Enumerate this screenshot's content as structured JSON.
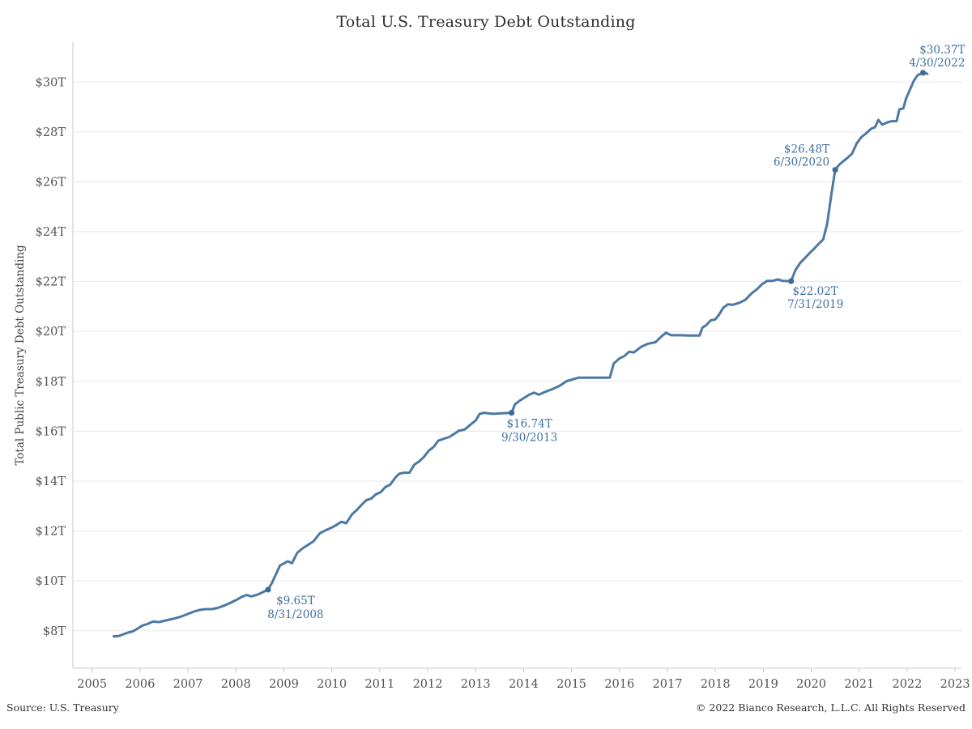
{
  "header": {
    "title": "Total U.S. Treasury Debt Outstanding"
  },
  "footer": {
    "source": "Source: U.S. Treasury",
    "copyright": "© 2022 Bianco Research, L.L.C. All Rights Reserved"
  },
  "chart_data": {
    "type": "line",
    "title": "Total U.S. Treasury Debt Outstanding",
    "xlabel": "",
    "ylabel": "Total Public Treasury Debt Outstanding",
    "legend_position": "none",
    "grid": "horizontal",
    "xlim": [
      2004.6,
      2023.15
    ],
    "ylim": [
      6.5,
      31.6
    ],
    "colors": {
      "line": "#4b79a5",
      "marker": "#3d6c9b",
      "annotation": "#3f6f9f",
      "grid": "#e7e7e7",
      "axis": "#c9c9c9",
      "tick_text": "#525252",
      "ylabel_text": "#444444"
    },
    "y_ticks": [
      {
        "value": 8,
        "label": "$8T"
      },
      {
        "value": 10,
        "label": "$10T"
      },
      {
        "value": 12,
        "label": "$12T"
      },
      {
        "value": 14,
        "label": "$14T"
      },
      {
        "value": 16,
        "label": "$16T"
      },
      {
        "value": 18,
        "label": "$18T"
      },
      {
        "value": 20,
        "label": "$20T"
      },
      {
        "value": 22,
        "label": "$22T"
      },
      {
        "value": 24,
        "label": "$24T"
      },
      {
        "value": 26,
        "label": "$26T"
      },
      {
        "value": 28,
        "label": "$28T"
      },
      {
        "value": 30,
        "label": "$30T"
      }
    ],
    "x_ticks": [
      {
        "value": 2005,
        "label": "2005"
      },
      {
        "value": 2006,
        "label": "2006"
      },
      {
        "value": 2007,
        "label": "2007"
      },
      {
        "value": 2008,
        "label": "2008"
      },
      {
        "value": 2009,
        "label": "2009"
      },
      {
        "value": 2010,
        "label": "2010"
      },
      {
        "value": 2011,
        "label": "2011"
      },
      {
        "value": 2012,
        "label": "2012"
      },
      {
        "value": 2013,
        "label": "2013"
      },
      {
        "value": 2014,
        "label": "2014"
      },
      {
        "value": 2015,
        "label": "2015"
      },
      {
        "value": 2016,
        "label": "2016"
      },
      {
        "value": 2017,
        "label": "2017"
      },
      {
        "value": 2018,
        "label": "2018"
      },
      {
        "value": 2019,
        "label": "2019"
      },
      {
        "value": 2020,
        "label": "2020"
      },
      {
        "value": 2021,
        "label": "2021"
      },
      {
        "value": 2022,
        "label": "2022"
      },
      {
        "value": 2023,
        "label": "2023"
      }
    ],
    "series": [
      {
        "name": "Total Public Treasury Debt Outstanding",
        "color": "#4b79a5",
        "points": [
          [
            2005.45,
            7.78
          ],
          [
            2005.55,
            7.79
          ],
          [
            2005.65,
            7.86
          ],
          [
            2005.75,
            7.93
          ],
          [
            2005.85,
            7.98
          ],
          [
            2005.95,
            8.09
          ],
          [
            2006.05,
            8.21
          ],
          [
            2006.15,
            8.27
          ],
          [
            2006.27,
            8.37
          ],
          [
            2006.4,
            8.35
          ],
          [
            2006.5,
            8.4
          ],
          [
            2006.62,
            8.45
          ],
          [
            2006.75,
            8.51
          ],
          [
            2006.87,
            8.58
          ],
          [
            2007.0,
            8.68
          ],
          [
            2007.12,
            8.77
          ],
          [
            2007.25,
            8.84
          ],
          [
            2007.37,
            8.87
          ],
          [
            2007.5,
            8.87
          ],
          [
            2007.62,
            8.92
          ],
          [
            2007.75,
            9.01
          ],
          [
            2007.87,
            9.11
          ],
          [
            2008.0,
            9.23
          ],
          [
            2008.12,
            9.36
          ],
          [
            2008.22,
            9.44
          ],
          [
            2008.32,
            9.38
          ],
          [
            2008.45,
            9.45
          ],
          [
            2008.55,
            9.54
          ],
          [
            2008.67,
            9.65
          ],
          [
            2008.75,
            9.91
          ],
          [
            2008.83,
            10.25
          ],
          [
            2008.92,
            10.62
          ],
          [
            2009.0,
            10.7
          ],
          [
            2009.08,
            10.79
          ],
          [
            2009.17,
            10.71
          ],
          [
            2009.28,
            11.13
          ],
          [
            2009.4,
            11.32
          ],
          [
            2009.5,
            11.44
          ],
          [
            2009.62,
            11.59
          ],
          [
            2009.75,
            11.91
          ],
          [
            2009.87,
            12.03
          ],
          [
            2010.0,
            12.14
          ],
          [
            2010.1,
            12.25
          ],
          [
            2010.2,
            12.37
          ],
          [
            2010.3,
            12.31
          ],
          [
            2010.42,
            12.67
          ],
          [
            2010.52,
            12.84
          ],
          [
            2010.62,
            13.05
          ],
          [
            2010.72,
            13.24
          ],
          [
            2010.82,
            13.3
          ],
          [
            2010.92,
            13.47
          ],
          [
            2011.02,
            13.56
          ],
          [
            2011.12,
            13.77
          ],
          [
            2011.22,
            13.86
          ],
          [
            2011.32,
            14.13
          ],
          [
            2011.4,
            14.29
          ],
          [
            2011.5,
            14.34
          ],
          [
            2011.62,
            14.34
          ],
          [
            2011.72,
            14.66
          ],
          [
            2011.82,
            14.79
          ],
          [
            2011.92,
            14.97
          ],
          [
            2012.02,
            15.22
          ],
          [
            2012.12,
            15.36
          ],
          [
            2012.22,
            15.62
          ],
          [
            2012.32,
            15.69
          ],
          [
            2012.45,
            15.77
          ],
          [
            2012.55,
            15.89
          ],
          [
            2012.65,
            16.02
          ],
          [
            2012.77,
            16.07
          ],
          [
            2012.9,
            16.28
          ],
          [
            2013.0,
            16.43
          ],
          [
            2013.08,
            16.69
          ],
          [
            2013.17,
            16.74
          ],
          [
            2013.35,
            16.7
          ],
          [
            2013.55,
            16.72
          ],
          [
            2013.75,
            16.74
          ],
          [
            2013.82,
            17.08
          ],
          [
            2013.92,
            17.23
          ],
          [
            2014.02,
            17.35
          ],
          [
            2014.12,
            17.47
          ],
          [
            2014.22,
            17.55
          ],
          [
            2014.32,
            17.47
          ],
          [
            2014.45,
            17.58
          ],
          [
            2014.6,
            17.69
          ],
          [
            2014.75,
            17.82
          ],
          [
            2014.9,
            18.01
          ],
          [
            2015.02,
            18.08
          ],
          [
            2015.15,
            18.15
          ],
          [
            2015.4,
            18.15
          ],
          [
            2015.65,
            18.15
          ],
          [
            2015.8,
            18.15
          ],
          [
            2015.88,
            18.72
          ],
          [
            2016.0,
            18.92
          ],
          [
            2016.1,
            19.01
          ],
          [
            2016.2,
            19.19
          ],
          [
            2016.3,
            19.16
          ],
          [
            2016.45,
            19.38
          ],
          [
            2016.6,
            19.51
          ],
          [
            2016.75,
            19.57
          ],
          [
            2016.88,
            19.81
          ],
          [
            2016.97,
            19.95
          ],
          [
            2017.08,
            19.85
          ],
          [
            2017.25,
            19.85
          ],
          [
            2017.45,
            19.84
          ],
          [
            2017.67,
            19.84
          ],
          [
            2017.73,
            20.16
          ],
          [
            2017.8,
            20.24
          ],
          [
            2017.9,
            20.44
          ],
          [
            2018.0,
            20.49
          ],
          [
            2018.08,
            20.68
          ],
          [
            2018.16,
            20.94
          ],
          [
            2018.26,
            21.09
          ],
          [
            2018.36,
            21.07
          ],
          [
            2018.5,
            21.15
          ],
          [
            2018.62,
            21.26
          ],
          [
            2018.75,
            21.52
          ],
          [
            2018.87,
            21.7
          ],
          [
            2018.97,
            21.89
          ],
          [
            2019.08,
            22.03
          ],
          [
            2019.2,
            22.03
          ],
          [
            2019.3,
            22.09
          ],
          [
            2019.4,
            22.03
          ],
          [
            2019.5,
            22.02
          ],
          [
            2019.58,
            22.02
          ],
          [
            2019.67,
            22.46
          ],
          [
            2019.77,
            22.75
          ],
          [
            2019.87,
            22.95
          ],
          [
            2019.97,
            23.15
          ],
          [
            2020.07,
            23.34
          ],
          [
            2020.17,
            23.54
          ],
          [
            2020.25,
            23.69
          ],
          [
            2020.33,
            24.3
          ],
          [
            2020.42,
            25.5
          ],
          [
            2020.5,
            26.48
          ],
          [
            2020.58,
            26.68
          ],
          [
            2020.67,
            26.83
          ],
          [
            2020.75,
            26.95
          ],
          [
            2020.85,
            27.13
          ],
          [
            2020.95,
            27.55
          ],
          [
            2021.05,
            27.8
          ],
          [
            2021.15,
            27.95
          ],
          [
            2021.25,
            28.13
          ],
          [
            2021.33,
            28.19
          ],
          [
            2021.4,
            28.48
          ],
          [
            2021.48,
            28.29
          ],
          [
            2021.58,
            28.38
          ],
          [
            2021.68,
            28.43
          ],
          [
            2021.78,
            28.43
          ],
          [
            2021.84,
            28.91
          ],
          [
            2021.92,
            28.94
          ],
          [
            2021.98,
            29.35
          ],
          [
            2022.06,
            29.7
          ],
          [
            2022.14,
            30.05
          ],
          [
            2022.22,
            30.28
          ],
          [
            2022.33,
            30.37
          ],
          [
            2022.42,
            30.33
          ]
        ]
      }
    ],
    "annotations": [
      {
        "x": 2008.67,
        "y": 9.65,
        "line1": "$9.65T",
        "line2": "8/31/2008",
        "anchor": "middle",
        "dx": 34,
        "dy1": 18,
        "dy2": 35
      },
      {
        "x": 2013.75,
        "y": 16.74,
        "line1": "$16.74T",
        "line2": "9/30/2013",
        "anchor": "middle",
        "dx": 22,
        "dy1": 18,
        "dy2": 35
      },
      {
        "x": 2019.58,
        "y": 22.02,
        "line1": "$22.02T",
        "line2": "7/31/2019",
        "anchor": "middle",
        "dx": 30,
        "dy1": 17,
        "dy2": 33
      },
      {
        "x": 2020.5,
        "y": 26.48,
        "line1": "$26.48T",
        "line2": "6/30/2020",
        "anchor": "end",
        "dx": -7,
        "dy1": -21,
        "dy2": -5
      },
      {
        "x": 2022.33,
        "y": 30.37,
        "line1": "$30.37T",
        "line2": "4/30/2022",
        "anchor": "end",
        "dx": 52,
        "dy1": -24,
        "dy2": -8
      }
    ]
  }
}
